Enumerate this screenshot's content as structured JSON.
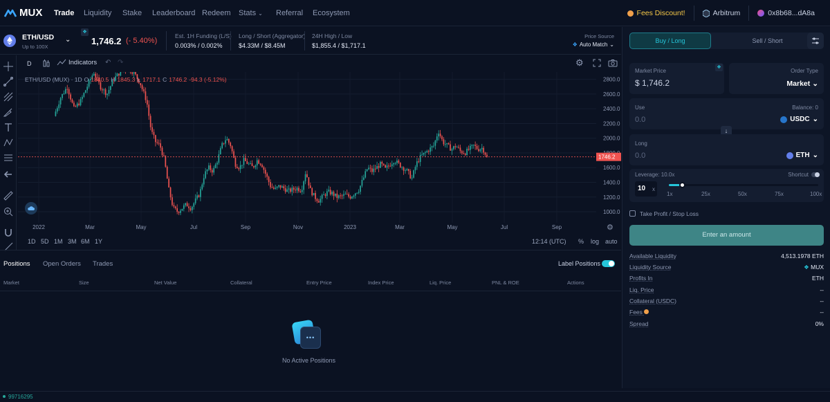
{
  "nav": {
    "logo": "MUX",
    "items": [
      "Trade",
      "Liquidity",
      "Stake",
      "Leaderboard",
      "Redeem",
      "Stats",
      "Referral",
      "Ecosystem"
    ],
    "fees_discount": "Fees Discount!",
    "network": "Arbitrum",
    "wallet": "0x8b68...dA8a"
  },
  "market": {
    "pair": "ETH/USD",
    "leverage_note": "Up to 100X",
    "price": "1,746.2",
    "change": "(- 5.40%)",
    "funding_label": "Est. 1H Funding (L/S)",
    "funding_value": "0.003% / 0.002%",
    "ls_label": "Long / Short (Aggregator)",
    "ls_value": "$4.33M / $8.45M",
    "hl_label": "24H High / Low",
    "hl_value": "$1,855.4 / $1,717.1",
    "source_label": "Price Source",
    "source_value": "Auto Match"
  },
  "chart_toolbar": {
    "interval": "D",
    "indicators": "Indicators"
  },
  "chart_legend": {
    "symbol": "ETH/USD (MUX) · 1D",
    "o_label": "O",
    "o": "1840.5",
    "h_label": "H",
    "h": "1845.3",
    "l_label": "L",
    "l": "1717.1",
    "c_label": "C",
    "c": "1746.2",
    "chg": "-94.3 (-5.12%)"
  },
  "chart_data": {
    "type": "candlestick",
    "last_price": 1746.2,
    "ylim": [
      850,
      2900
    ],
    "y_ticks": [
      "2800.0",
      "2600.0",
      "2400.0",
      "2200.0",
      "2000.0",
      "1800.0",
      "1600.0",
      "1400.0",
      "1200.0",
      "1000.0"
    ],
    "x_ticks": [
      "2022",
      "Mar",
      "May",
      "Jul",
      "Sep",
      "Nov",
      "2023",
      "Mar",
      "May",
      "Jul",
      "Sep"
    ],
    "price_path": [
      [
        0,
        2300
      ],
      [
        3,
        2550
      ],
      [
        6,
        2700
      ],
      [
        9,
        2400
      ],
      [
        12,
        2500
      ],
      [
        15,
        2700
      ],
      [
        18,
        2900
      ],
      [
        21,
        2700
      ],
      [
        24,
        2600
      ],
      [
        27,
        2800
      ],
      [
        30,
        2900
      ],
      [
        33,
        2950
      ],
      [
        36,
        2900
      ],
      [
        39,
        2750
      ],
      [
        42,
        2500
      ],
      [
        44,
        2100
      ],
      [
        46,
        1950
      ],
      [
        48,
        1900
      ],
      [
        50,
        1700
      ],
      [
        52,
        1300
      ],
      [
        54,
        1050
      ],
      [
        56,
        1000
      ],
      [
        58,
        1050
      ],
      [
        60,
        1100
      ],
      [
        62,
        1050
      ],
      [
        64,
        1150
      ],
      [
        66,
        1250
      ],
      [
        68,
        1500
      ],
      [
        70,
        1600
      ],
      [
        72,
        1550
      ],
      [
        74,
        1700
      ],
      [
        76,
        1900
      ],
      [
        78,
        2000
      ],
      [
        80,
        1900
      ],
      [
        82,
        1650
      ],
      [
        84,
        1600
      ],
      [
        86,
        1700
      ],
      [
        88,
        1650
      ],
      [
        90,
        1600
      ],
      [
        92,
        1700
      ],
      [
        94,
        1650
      ],
      [
        96,
        1500
      ],
      [
        98,
        1350
      ],
      [
        100,
        1300
      ],
      [
        102,
        1350
      ],
      [
        104,
        1320
      ],
      [
        106,
        1280
      ],
      [
        108,
        1300
      ],
      [
        110,
        1320
      ],
      [
        112,
        1290
      ],
      [
        114,
        1550
      ],
      [
        116,
        1300
      ],
      [
        118,
        1200
      ],
      [
        120,
        1150
      ],
      [
        122,
        1220
      ],
      [
        124,
        1270
      ],
      [
        126,
        1250
      ],
      [
        128,
        1200
      ],
      [
        130,
        1210
      ],
      [
        132,
        1230
      ],
      [
        134,
        1200
      ],
      [
        136,
        1250
      ],
      [
        138,
        1300
      ],
      [
        140,
        1450
      ],
      [
        142,
        1600
      ],
      [
        144,
        1550
      ],
      [
        146,
        1600
      ],
      [
        148,
        1650
      ],
      [
        150,
        1580
      ],
      [
        152,
        1640
      ],
      [
        154,
        1700
      ],
      [
        156,
        1650
      ],
      [
        158,
        1600
      ],
      [
        160,
        1550
      ],
      [
        162,
        1450
      ],
      [
        164,
        1650
      ],
      [
        166,
        1750
      ],
      [
        168,
        1800
      ],
      [
        170,
        1850
      ],
      [
        172,
        1900
      ],
      [
        174,
        2100
      ],
      [
        176,
        1950
      ],
      [
        178,
        1900
      ],
      [
        180,
        1850
      ],
      [
        182,
        1900
      ],
      [
        184,
        1820
      ],
      [
        186,
        1800
      ],
      [
        188,
        1850
      ],
      [
        190,
        1900
      ],
      [
        192,
        1850
      ],
      [
        194,
        1870
      ],
      [
        196,
        1746
      ]
    ],
    "timeframes": [
      "1D",
      "5D",
      "1M",
      "3M",
      "6M",
      "1Y"
    ],
    "time": "12:14 (UTC)",
    "percent": "%",
    "log": "log",
    "auto": "auto"
  },
  "positions": {
    "tabs": [
      "Positions",
      "Open Orders",
      "Trades"
    ],
    "label_positions": "Label Positions",
    "columns": [
      "Market",
      "Size",
      "Net Value",
      "Collateral",
      "Entry Price",
      "Index Price",
      "Liq. Price",
      "PNL & ROE",
      "Actions"
    ],
    "empty": "No Active Positions"
  },
  "order": {
    "buy_tab": "Buy / Long",
    "sell_tab": "Sell / Short",
    "market_price_label": "Market Price",
    "market_price": "$ 1,746.2",
    "order_type_label": "Order Type",
    "order_type": "Market",
    "use_label": "Use",
    "balance": "Balance: 0",
    "use_value": "0.0",
    "use_token": "USDC",
    "long_label": "Long",
    "long_value": "0.0",
    "long_token": "ETH",
    "leverage_label": "Leverage: 10.0x",
    "shortcut": "Shortcut",
    "leverage_value": "10",
    "leverage_x": "x",
    "slider_ticks": [
      "1x",
      "25x",
      "50x",
      "75x",
      "100x"
    ],
    "tpsl": "Take Profit / Stop Loss",
    "enter_btn": "Enter an amount",
    "info": [
      {
        "k": "Available Liquidity",
        "v": "4,513.1978 ETH"
      },
      {
        "k": "Liquidity Source",
        "v": "MUX"
      },
      {
        "k": "Profits In",
        "v": "ETH"
      },
      {
        "k": "Liq. Price",
        "v": "--"
      },
      {
        "k": "Collateral (USDC)",
        "v": "--"
      },
      {
        "k": "Fees",
        "v": "--"
      },
      {
        "k": "Spread",
        "v": "0%"
      }
    ]
  },
  "footer": {
    "block": "99716295"
  },
  "colors": {
    "up": "#26a69a",
    "down": "#ef5350",
    "accent": "#26c6da"
  }
}
